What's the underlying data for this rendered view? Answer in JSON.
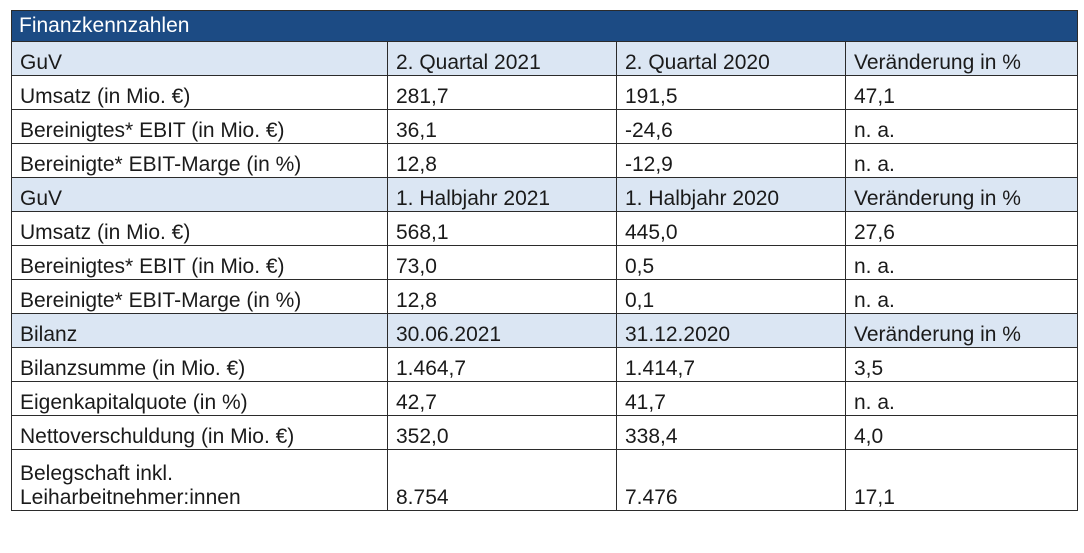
{
  "title": "Finanzkennzahlen",
  "sections": [
    {
      "header": [
        "GuV",
        "2. Quartal 2021",
        "2. Quartal 2020",
        "Veränderung in %"
      ],
      "rows": [
        [
          "Umsatz (in Mio. €)",
          "281,7",
          "191,5",
          "47,1"
        ],
        [
          "Bereinigtes* EBIT (in Mio. €)",
          "36,1",
          "-24,6",
          "n. a."
        ],
        [
          "Bereinigte* EBIT-Marge (in %)",
          "12,8",
          "-12,9",
          "n. a."
        ]
      ]
    },
    {
      "header": [
        "GuV",
        "1. Halbjahr 2021",
        "1. Halbjahr 2020",
        "Veränderung in %"
      ],
      "rows": [
        [
          "Umsatz (in Mio. €)",
          "568,1",
          "445,0",
          "27,6"
        ],
        [
          "Bereinigtes* EBIT (in Mio. €)",
          "73,0",
          "0,5",
          "n. a."
        ],
        [
          "Bereinigte* EBIT-Marge (in %)",
          "12,8",
          "0,1",
          "n. a."
        ]
      ]
    },
    {
      "header": [
        "Bilanz",
        "30.06.2021",
        "31.12.2020",
        "Veränderung in %"
      ],
      "rows": [
        [
          "Bilanzsumme (in Mio. €)",
          "1.464,7",
          "1.414,7",
          "3,5"
        ],
        [
          "Eigenkapitalquote (in %)",
          "42,7",
          "41,7",
          "n. a."
        ],
        [
          "Nettoverschuldung (in Mio. €)",
          "352,0",
          "338,4",
          "4,0"
        ]
      ]
    }
  ],
  "last_row": {
    "label_line1": "Belegschaft inkl.",
    "label_line2": "Leiharbeitnehmer:innen",
    "values": [
      "8.754",
      "7.476",
      "17,1"
    ]
  },
  "colors": {
    "title_bg": "#1c4b84",
    "title_text": "#ffffff",
    "section_bg": "#dbe6f3",
    "border": "#2b2b2b"
  }
}
